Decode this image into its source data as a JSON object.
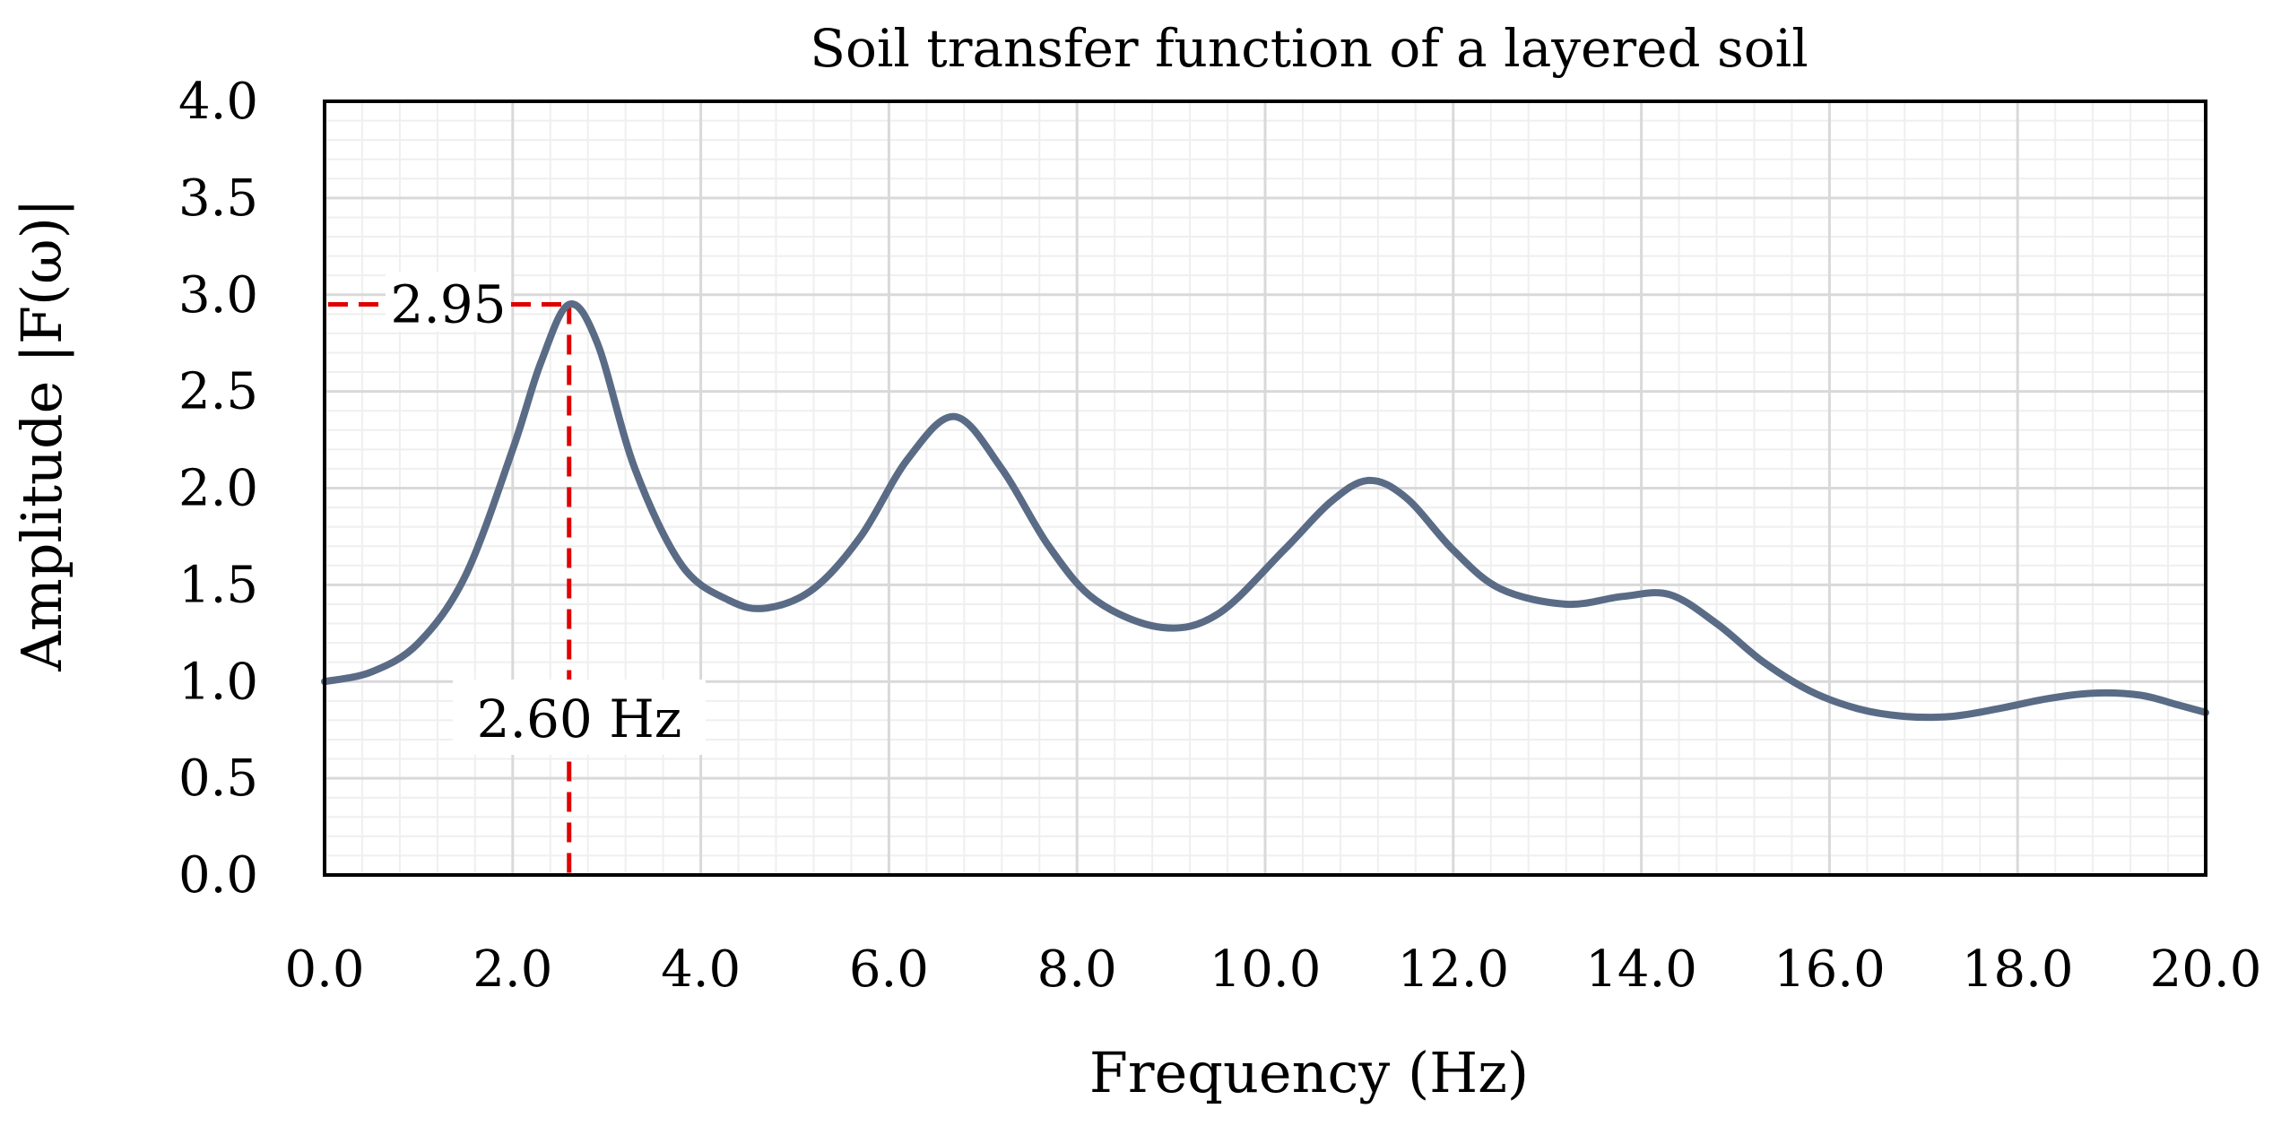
{
  "chart_data": {
    "type": "line",
    "title": "Soil transfer function of a layered soil",
    "xlabel": "Frequency (Hz)",
    "ylabel": "Amplitude |F(ω)|",
    "xlim": [
      0,
      20
    ],
    "ylim": [
      0,
      4
    ],
    "xticks": [
      "0.0",
      "2.0",
      "4.0",
      "6.0",
      "8.0",
      "10.0",
      "12.0",
      "14.0",
      "16.0",
      "18.0",
      "20.0"
    ],
    "yticks": [
      "0.0",
      "0.5",
      "1.0",
      "1.5",
      "2.0",
      "2.5",
      "3.0",
      "3.5",
      "4.0"
    ],
    "grid": true,
    "series": [
      {
        "x": [
          0,
          0.5,
          1.0,
          1.5,
          2.0,
          2.3,
          2.6,
          2.9,
          3.3,
          3.8,
          4.3,
          4.7,
          5.2,
          5.7,
          6.2,
          6.7,
          7.2,
          7.7,
          8.2,
          8.9,
          9.5,
          10.2,
          10.7,
          11.1,
          11.5,
          12.0,
          12.5,
          13.2,
          13.8,
          14.3,
          14.8,
          15.3,
          15.8,
          16.3,
          16.8,
          17.3,
          17.8,
          18.3,
          18.8,
          19.3,
          19.7,
          20.0
        ],
        "y": [
          1.0,
          1.05,
          1.2,
          1.55,
          2.2,
          2.65,
          2.95,
          2.75,
          2.1,
          1.6,
          1.42,
          1.38,
          1.48,
          1.75,
          2.15,
          2.37,
          2.1,
          1.7,
          1.42,
          1.28,
          1.35,
          1.68,
          1.93,
          2.04,
          1.95,
          1.68,
          1.48,
          1.4,
          1.44,
          1.45,
          1.3,
          1.1,
          0.95,
          0.86,
          0.82,
          0.82,
          0.86,
          0.91,
          0.94,
          0.93,
          0.88,
          0.84
        ]
      }
    ],
    "annotations": [
      {
        "text": "2.95",
        "x": 2.6,
        "y": 2.95
      },
      {
        "text": "2.60 Hz",
        "x": 2.6,
        "y": 1.0
      }
    ],
    "colors": {
      "line": "#5a6b86",
      "marker": "#e00000"
    }
  }
}
